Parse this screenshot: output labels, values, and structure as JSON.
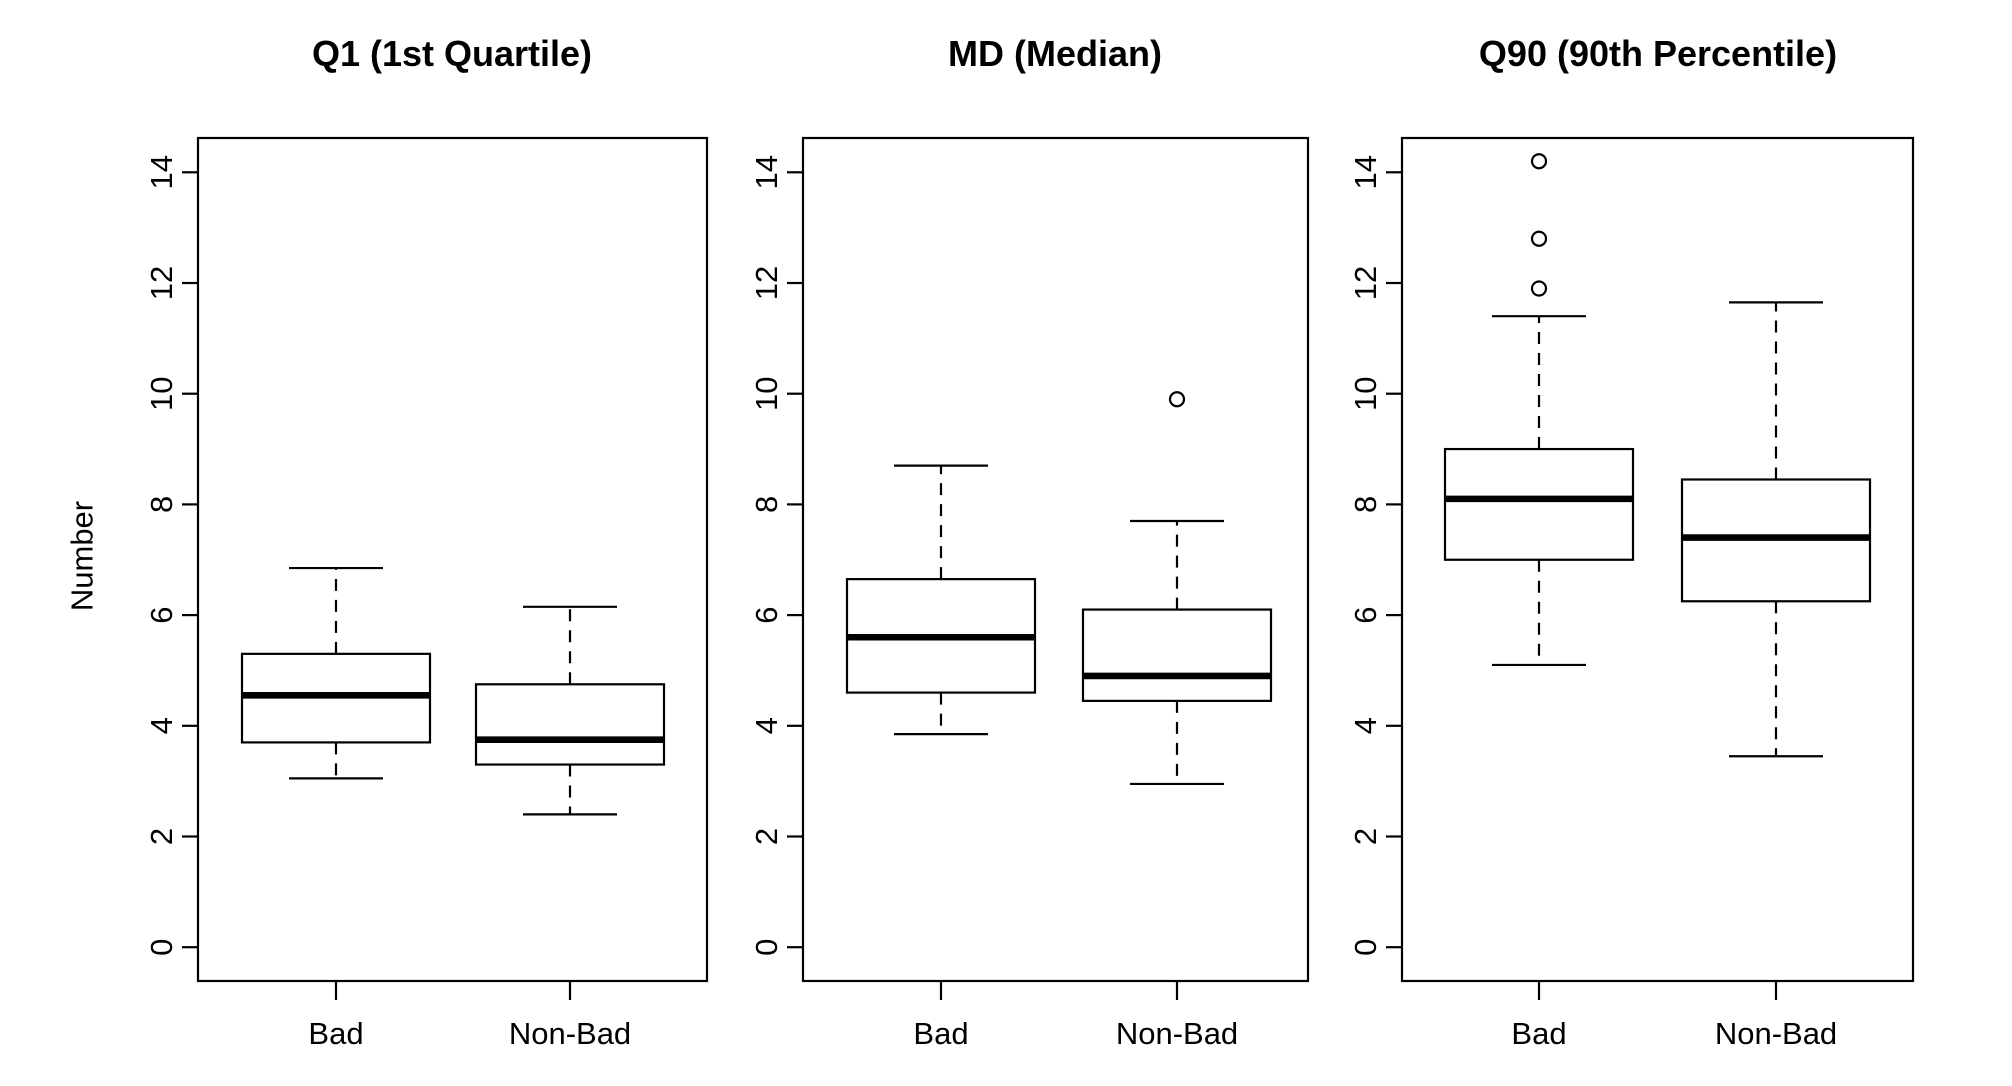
{
  "figure": {
    "background_color": "#ffffff",
    "line_color": "#000000"
  },
  "chart_data": [
    {
      "type": "boxplot",
      "title": "Q1 (1st Quartile)",
      "ylabel": "Number",
      "xlabel": "",
      "categories": [
        "Bad",
        "Non-Bad"
      ],
      "ylim": [
        0,
        14
      ],
      "yticks": [
        0,
        2,
        4,
        6,
        8,
        10,
        12,
        14
      ],
      "grid": false,
      "series": [
        {
          "name": "Bad",
          "whisker_low": 3.05,
          "q1": 3.7,
          "median": 4.55,
          "q3": 5.3,
          "whisker_high": 6.85,
          "outliers": []
        },
        {
          "name": "Non-Bad",
          "whisker_low": 2.4,
          "q1": 3.3,
          "median": 3.75,
          "q3": 4.75,
          "whisker_high": 6.15,
          "outliers": []
        }
      ]
    },
    {
      "type": "boxplot",
      "title": "MD (Median)",
      "ylabel": "",
      "xlabel": "",
      "categories": [
        "Bad",
        "Non-Bad"
      ],
      "ylim": [
        0,
        14
      ],
      "yticks": [
        0,
        2,
        4,
        6,
        8,
        10,
        12,
        14
      ],
      "grid": false,
      "series": [
        {
          "name": "Bad",
          "whisker_low": 3.85,
          "q1": 4.6,
          "median": 5.6,
          "q3": 6.65,
          "whisker_high": 8.7,
          "outliers": []
        },
        {
          "name": "Non-Bad",
          "whisker_low": 2.95,
          "q1": 4.45,
          "median": 4.9,
          "q3": 6.1,
          "whisker_high": 7.7,
          "outliers": [
            9.9
          ]
        }
      ]
    },
    {
      "type": "boxplot",
      "title": "Q90 (90th Percentile)",
      "ylabel": "",
      "xlabel": "",
      "categories": [
        "Bad",
        "Non-Bad"
      ],
      "ylim": [
        0,
        14
      ],
      "yticks": [
        0,
        2,
        4,
        6,
        8,
        10,
        12,
        14
      ],
      "grid": false,
      "series": [
        {
          "name": "Bad",
          "whisker_low": 5.1,
          "q1": 7.0,
          "median": 8.1,
          "q3": 9.0,
          "whisker_high": 11.4,
          "outliers": [
            11.9,
            12.8,
            14.2
          ]
        },
        {
          "name": "Non-Bad",
          "whisker_low": 3.45,
          "q1": 6.25,
          "median": 7.4,
          "q3": 8.45,
          "whisker_high": 11.65,
          "outliers": []
        }
      ]
    }
  ]
}
